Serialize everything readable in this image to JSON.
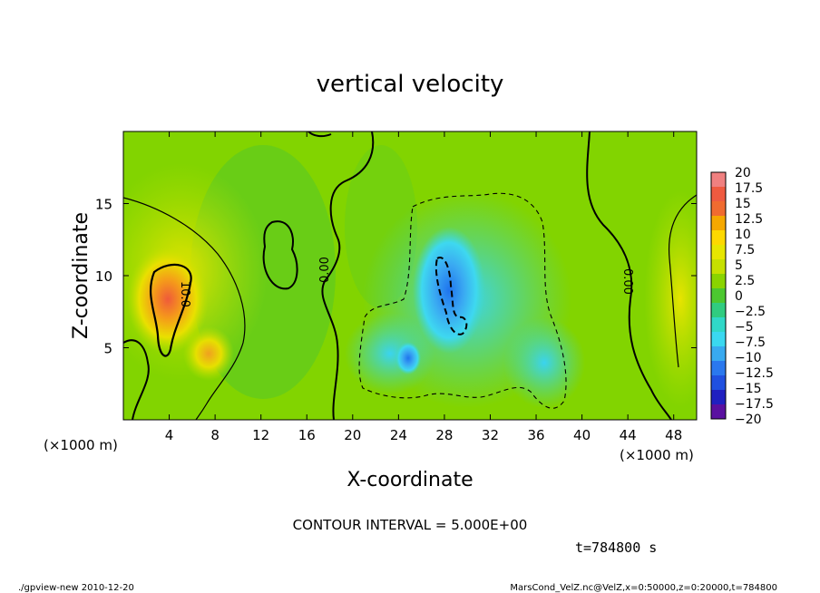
{
  "chart_data": {
    "type": "heatmap",
    "title": "vertical velocity",
    "xlabel": "X-coordinate",
    "ylabel": "Z-coordinate",
    "x_unit": "(×1000 m)",
    "y_unit": "(×1000 m)",
    "xlim": [
      0,
      50
    ],
    "ylim": [
      0,
      20
    ],
    "x_ticks": [
      "4",
      "8",
      "12",
      "16",
      "20",
      "24",
      "28",
      "32",
      "36",
      "40",
      "44",
      "48"
    ],
    "x_tick_values": [
      4,
      8,
      12,
      16,
      20,
      24,
      28,
      32,
      36,
      40,
      44,
      48
    ],
    "y_ticks": [
      "5",
      "10",
      "15"
    ],
    "y_tick_values": [
      5,
      10,
      15
    ],
    "colorbar_labels": [
      "20",
      "17.5",
      "15",
      "12.5",
      "10",
      "7.5",
      "5",
      "2.5",
      "0",
      "−2.5",
      "−5",
      "−7.5",
      "−10",
      "−12.5",
      "−15",
      "−17.5",
      "−20"
    ],
    "colorbar_values": [
      20,
      17.5,
      15,
      12.5,
      10,
      7.5,
      5,
      2.5,
      0,
      -2.5,
      -5,
      -7.5,
      -10,
      -12.5,
      -15,
      -17.5,
      -20
    ],
    "colorbar_colors": [
      "#f08080",
      "#ef5a40",
      "#f06b30",
      "#f5a800",
      "#fdd800",
      "#e7e600",
      "#c6e000",
      "#8ad400",
      "#4cc830",
      "#30cc80",
      "#30d8c8",
      "#3ad8f0",
      "#38aaf0",
      "#2a78ee",
      "#2050e0",
      "#2020c0",
      "#5a10a0"
    ],
    "contour_labels": [
      "10.0",
      "0.00",
      "0.00"
    ],
    "contour_interval": "CONTOUR INTERVAL = 5.000E+00",
    "time": "t=784800 s"
  },
  "footer": {
    "left": "./gpview-new  2010-12-20",
    "right": "MarsCond_VelZ.nc@VelZ,x=0:50000,z=0:20000,t=784800"
  }
}
